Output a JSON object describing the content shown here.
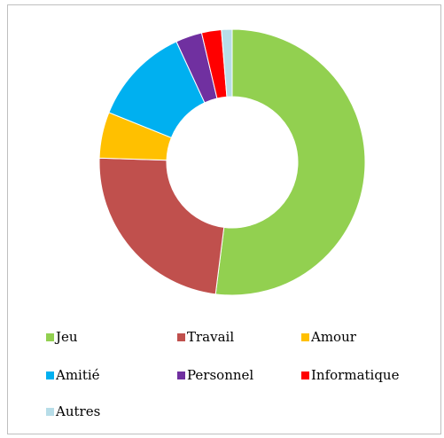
{
  "chart_data": {
    "type": "donut",
    "categories": [
      "Jeu",
      "Travail",
      "Amour",
      "Amitié",
      "Personnel",
      "Informatique",
      "Autres"
    ],
    "values": [
      52,
      23.5,
      5.6,
      12,
      3.2,
      2.4,
      1.3
    ],
    "colors": [
      "#92d050",
      "#c0504d",
      "#ffc000",
      "#00b0f0",
      "#7030a0",
      "#ff0000",
      "#b7dde8"
    ],
    "legend": "bottom"
  }
}
